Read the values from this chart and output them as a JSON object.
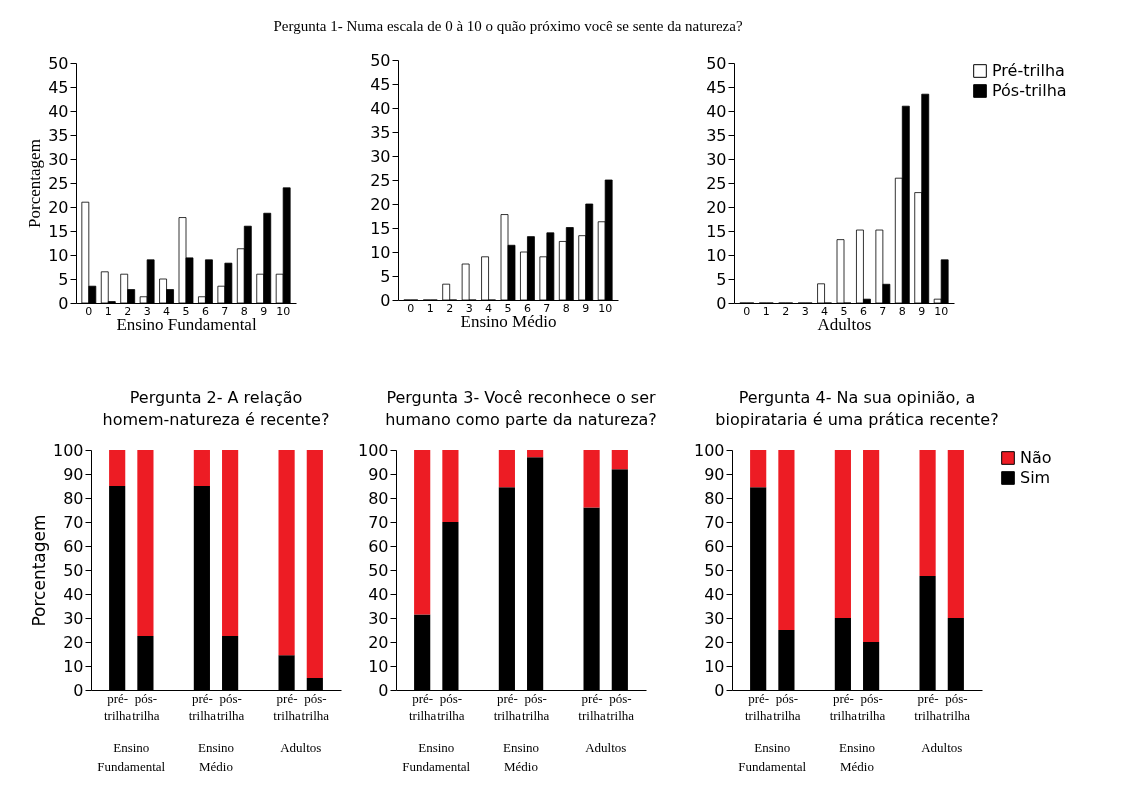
{
  "chart_data": [
    {
      "type": "bar",
      "xlabel": "Ensino Fundamental",
      "ylabel": "Porcentagem",
      "categories": [
        "0",
        "1",
        "2",
        "3",
        "4",
        "5",
        "6",
        "7",
        "8",
        "9",
        "10"
      ],
      "series": [
        {
          "color": "#ffffff",
          "values": [
            21,
            6.5,
            6,
            1.3,
            5,
            17.8,
            1.3,
            3.5,
            11.3,
            6,
            6
          ]
        },
        {
          "color": "#000000",
          "values": [
            3.5,
            0.3,
            2.8,
            9,
            2.8,
            9.4,
            9,
            8.3,
            16,
            18.7,
            24
          ]
        }
      ],
      "ylim": [
        0,
        50
      ],
      "yticks": [
        0,
        5,
        10,
        15,
        20,
        25,
        30,
        35,
        40,
        45,
        50
      ]
    },
    {
      "type": "bar",
      "title": "Pergunta 1- Numa escala de 0 à 10 o quão próximo você se sente da natureza?",
      "xlabel": "Ensino Médio",
      "categories": [
        "0",
        "1",
        "2",
        "3",
        "4",
        "5",
        "6",
        "7",
        "8",
        "9",
        "10"
      ],
      "series": [
        {
          "color": "#ffffff",
          "values": [
            0,
            0,
            3.3,
            7.5,
            9,
            17.8,
            10,
            9,
            12.2,
            13.4,
            16.3
          ]
        },
        {
          "color": "#000000",
          "values": [
            0,
            0,
            0,
            0,
            0,
            11.4,
            13.2,
            14,
            15.1,
            20,
            25
          ]
        }
      ],
      "ylim": [
        0,
        50
      ],
      "yticks": [
        0,
        5,
        10,
        15,
        20,
        25,
        30,
        35,
        40,
        45,
        50
      ]
    },
    {
      "type": "bar",
      "xlabel": "Adultos",
      "categories": [
        "0",
        "1",
        "2",
        "3",
        "4",
        "5",
        "6",
        "7",
        "8",
        "9",
        "10"
      ],
      "series": [
        {
          "name": "Pré-trilha",
          "color": "#ffffff",
          "values": [
            0,
            0,
            0,
            0,
            4,
            13.2,
            15.2,
            15.2,
            26,
            23,
            0.8
          ]
        },
        {
          "name": "Pós-trilha",
          "color": "#000000",
          "values": [
            0,
            0,
            0,
            0,
            0,
            0,
            0.8,
            3.9,
            41,
            43.5,
            9
          ]
        }
      ],
      "ylim": [
        0,
        50
      ],
      "yticks": [
        0,
        5,
        10,
        15,
        20,
        25,
        30,
        35,
        40,
        45,
        50
      ],
      "legend": "right"
    },
    {
      "type": "bar",
      "stacked": true,
      "title": "Pergunta 2- A relação homem-natureza é recente?",
      "ylabel": "Porcentagem",
      "categories": [
        "pré-trilha",
        "pós-trilha",
        "pré-trilha",
        "pós-trilha",
        "pré-trilha",
        "pós-trilha"
      ],
      "series": [
        {
          "color": "#000000",
          "values": [
            85,
            22.5,
            85,
            22.5,
            14.5,
            5
          ]
        },
        {
          "color": "#ed1c24",
          "values": [
            15,
            77.5,
            15,
            77.5,
            85.5,
            95
          ]
        }
      ],
      "ylim": [
        0,
        100
      ],
      "yticks": [
        0,
        10,
        20,
        30,
        40,
        50,
        60,
        70,
        80,
        90,
        100
      ],
      "annotations": [
        "Ensino Fundamental",
        "Ensino Médio",
        "Adultos"
      ]
    },
    {
      "type": "bar",
      "stacked": true,
      "title": "Pergunta 3- Você reconhece o ser humano como parte da natureza?",
      "categories": [
        "pré-trilha",
        "pós-trilha",
        "pré-trilha",
        "pós-trilha",
        "pré-trilha",
        "pós-trilha"
      ],
      "series": [
        {
          "color": "#000000",
          "values": [
            31.5,
            70,
            84.5,
            97,
            76,
            92
          ]
        },
        {
          "color": "#ed1c24",
          "values": [
            68.5,
            30,
            15.5,
            3,
            24,
            8
          ]
        }
      ],
      "ylim": [
        0,
        100
      ],
      "yticks": [
        0,
        10,
        20,
        30,
        40,
        50,
        60,
        70,
        80,
        90,
        100
      ],
      "annotations": [
        "Ensino Fundamental",
        "Ensino Médio",
        "Adultos"
      ]
    },
    {
      "type": "bar",
      "stacked": true,
      "title": "Pergunta 4- Na sua opinião, a biopirataria é uma prática recente?",
      "categories": [
        "pré-trilha",
        "pós-trilha",
        "pré-trilha",
        "pós-trilha",
        "pré-trilha",
        "pós-trilha"
      ],
      "series": [
        {
          "name": "Sim",
          "color": "#000000",
          "values": [
            84.5,
            25,
            30,
            20,
            47.5,
            30
          ]
        },
        {
          "name": "Não",
          "color": "#ed1c24",
          "values": [
            15.5,
            75,
            70,
            80,
            52.5,
            70
          ]
        }
      ],
      "ylim": [
        0,
        100
      ],
      "yticks": [
        0,
        10,
        20,
        30,
        40,
        50,
        60,
        70,
        80,
        90,
        100
      ],
      "annotations": [
        "Ensino Fundamental",
        "Ensino Médio",
        "Adultos"
      ],
      "legend": "right"
    }
  ]
}
